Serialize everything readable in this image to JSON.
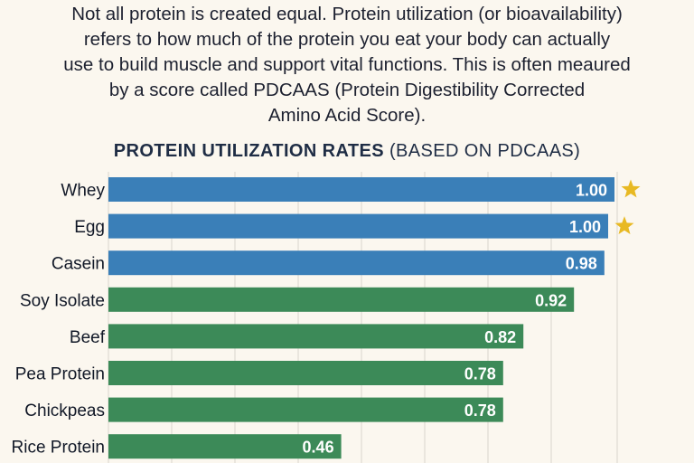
{
  "intro": {
    "lines": [
      "Not all protein is created equal. Protein utilization (or bioavailability)",
      "refers to how much of the protein you eat your body can actually",
      "use to build muscle and support vital functions. This is often meaured",
      "by a score called PDCAAS (Protein Digestibility Corrected",
      "Amino Acid Score)."
    ]
  },
  "chart_data": {
    "type": "bar",
    "orientation": "horizontal",
    "title": "PROTEIN UTILIZATION RATES",
    "subtitle": "(BASED ON PDCAAS)",
    "categories": [
      "Whey",
      "Egg",
      "Casein",
      "Soy Isolate",
      "Beef",
      "Pea Protein",
      "Chickpeas",
      "Rice Protein"
    ],
    "values": [
      1.0,
      1.0,
      0.98,
      0.92,
      0.82,
      0.78,
      0.78,
      0.46
    ],
    "value_labels": [
      "1.00",
      "1.00",
      "0.98",
      "0.92",
      "0.82",
      "0.78",
      "0.78",
      "0.46"
    ],
    "bar_colors": [
      "#3a7fb8",
      "#3a7fb8",
      "#3a7fb8",
      "#3c8a58",
      "#3c8a58",
      "#3c8a58",
      "#3c8a58",
      "#3c8a58"
    ],
    "starred": [
      "Whey",
      "Egg"
    ],
    "star_color": "#e8b923",
    "xlim": [
      0,
      1.0
    ],
    "grid": true,
    "legend": "none"
  }
}
